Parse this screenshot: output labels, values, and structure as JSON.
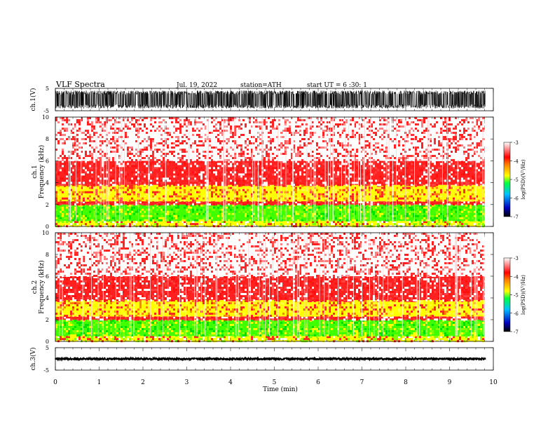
{
  "header": {
    "title": "VLF Spectra",
    "date": "Jul. 19, 2022",
    "station": "station=ATH",
    "start": "start UT = 6 :30: 1"
  },
  "chart_data": [
    {
      "type": "line",
      "name": "ch1-waveform",
      "ylabel": "ch.1(V)",
      "ylim": [
        -5,
        5
      ],
      "xlim": [
        0,
        10
      ],
      "ytick_labels": [
        "5",
        "-5"
      ],
      "amplitude_range": [
        -4.0,
        4.0
      ]
    },
    {
      "type": "heatmap",
      "name": "ch1-spectrogram",
      "ylabel": "Frequency (kHz)",
      "channel_label": "ch.1",
      "ylim": [
        0,
        10
      ],
      "xlim": [
        0,
        9.8
      ],
      "ytick_labels": [
        "0",
        "2",
        "4",
        "6",
        "8",
        "10"
      ],
      "bands": [
        {
          "from": 0,
          "to": 0.5,
          "color": "yellow/green"
        },
        {
          "from": 0.5,
          "to": 2.0,
          "color": "green"
        },
        {
          "from": 2.0,
          "to": 2.3,
          "color": "red"
        },
        {
          "from": 2.3,
          "to": 3.8,
          "color": "yellow/red"
        },
        {
          "from": 3.8,
          "to": 6.0,
          "color": "red"
        },
        {
          "from": 6.0,
          "to": 10.0,
          "color": "red/white"
        }
      ],
      "colorbar": {
        "label": "log(PSD)(V²/Hz)",
        "ticks": [
          "-3",
          "-4",
          "-5",
          "-6",
          "-7"
        ],
        "range": [
          -7,
          -3
        ]
      }
    },
    {
      "type": "heatmap",
      "name": "ch2-spectrogram",
      "ylabel": "Frequency (kHz)",
      "channel_label": "ch.2",
      "ylim": [
        0,
        10
      ],
      "xlim": [
        0,
        9.8
      ],
      "ytick_labels": [
        "0",
        "2",
        "4",
        "6",
        "8",
        "10"
      ],
      "bands": [
        {
          "from": 0,
          "to": 0.5,
          "color": "yellow/green"
        },
        {
          "from": 0.5,
          "to": 2.0,
          "color": "green"
        },
        {
          "from": 2.0,
          "to": 2.3,
          "color": "red"
        },
        {
          "from": 2.3,
          "to": 3.8,
          "color": "yellow/red"
        },
        {
          "from": 3.8,
          "to": 6.0,
          "color": "red"
        },
        {
          "from": 6.0,
          "to": 10.0,
          "color": "red/white"
        }
      ],
      "colorbar": {
        "label": "log(PSD)(V²/Hz)",
        "ticks": [
          "-3",
          "-4",
          "-5",
          "-6",
          "-7"
        ],
        "range": [
          -7,
          -3
        ]
      }
    },
    {
      "type": "line",
      "name": "ch3-waveform",
      "ylabel": "ch.3(V)",
      "ylim": [
        -5,
        5
      ],
      "xlim": [
        0,
        10
      ],
      "ytick_labels": [
        "5",
        "-5"
      ],
      "amplitude_range": [
        -0.4,
        0.4
      ]
    }
  ],
  "x_axis": {
    "label": "Time (min)",
    "ticks": [
      "0",
      "1",
      "2",
      "3",
      "4",
      "5",
      "6",
      "7",
      "8",
      "9",
      "10"
    ]
  },
  "colors": {
    "waveform": "#000000",
    "background": "#ffffff"
  }
}
